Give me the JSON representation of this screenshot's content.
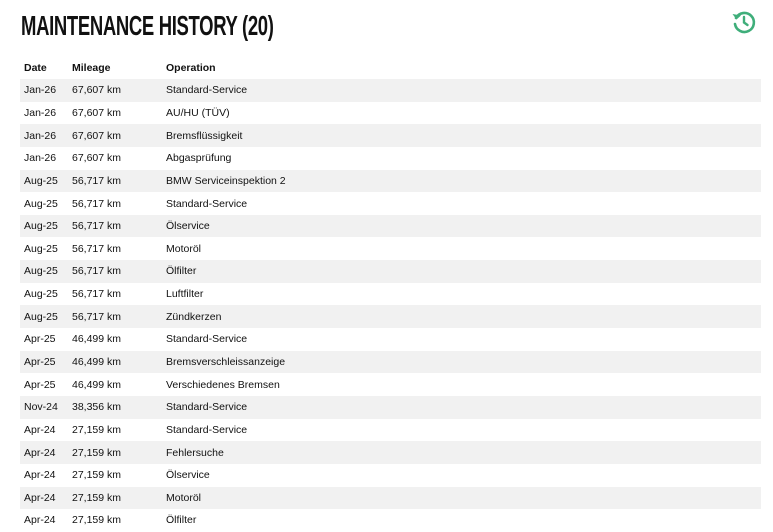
{
  "header": {
    "title": "MAINTENANCE HISTORY (20)"
  },
  "table": {
    "columns": [
      "Date",
      "Mileage",
      "Operation"
    ],
    "rows": [
      [
        "Jan-26",
        "67,607 km",
        "Standard-Service"
      ],
      [
        "Jan-26",
        "67,607 km",
        "AU/HU (TÜV)"
      ],
      [
        "Jan-26",
        "67,607 km",
        "Bremsflüssigkeit"
      ],
      [
        "Jan-26",
        "67,607 km",
        "Abgasprüfung"
      ],
      [
        "Aug-25",
        "56,717 km",
        "BMW Serviceinspektion 2"
      ],
      [
        "Aug-25",
        "56,717 km",
        "Standard-Service"
      ],
      [
        "Aug-25",
        "56,717 km",
        "Ölservice"
      ],
      [
        "Aug-25",
        "56,717 km",
        "Motoröl"
      ],
      [
        "Aug-25",
        "56,717 km",
        "Ölfilter"
      ],
      [
        "Aug-25",
        "56,717 km",
        "Luftfilter"
      ],
      [
        "Aug-25",
        "56,717 km",
        "Zündkerzen"
      ],
      [
        "Apr-25",
        "46,499 km",
        "Standard-Service"
      ],
      [
        "Apr-25",
        "46,499 km",
        "Bremsverschleissanzeige"
      ],
      [
        "Apr-25",
        "46,499 km",
        "Verschiedenes Bremsen"
      ],
      [
        "Nov-24",
        "38,356 km",
        "Standard-Service"
      ],
      [
        "Apr-24",
        "27,159 km",
        "Standard-Service"
      ],
      [
        "Apr-24",
        "27,159 km",
        "Fehlersuche"
      ],
      [
        "Apr-24",
        "27,159 km",
        "Ölservice"
      ],
      [
        "Apr-24",
        "27,159 km",
        "Motoröl"
      ],
      [
        "Apr-24",
        "27,159 km",
        "Ölfilter"
      ]
    ]
  }
}
